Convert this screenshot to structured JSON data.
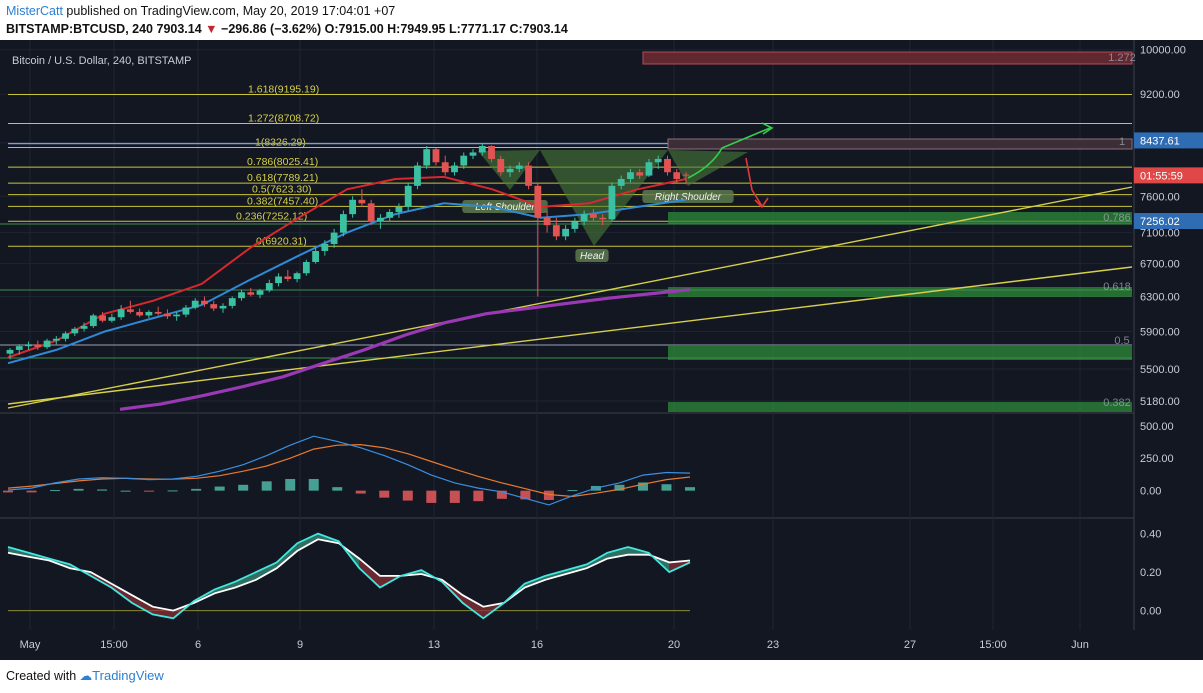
{
  "header": {
    "author": "MisterCatt",
    "published_text": " published on TradingView.com, May 20, 2019 17:04:01 +07",
    "symbol": "BITSTAMP:BTCUSD, 240",
    "last": "7903.14",
    "change": "−296.86 (−3.62%)",
    "ohlc": "O:7915.00 H:7949.95 L:7771.17 C:7903.14",
    "colors": {
      "up": "#26a69a",
      "down": "#c0262d",
      "accent": "#2b7fd4"
    }
  },
  "footer": {
    "created_with": "Created with",
    "brand": "TradingView"
  },
  "chart_data": [
    {
      "type": "candlestick",
      "title": "Bitcoin / U.S. Dollar, 240, BITSTAMP",
      "y_ticks": [
        "10000.00",
        "9200.00",
        "8400.00",
        "7600.00",
        "7100.00",
        "6700.00",
        "6300.00",
        "5900.00",
        "5500.00",
        "5180.00"
      ],
      "ylim": [
        5100,
        10200
      ],
      "x_ticks": [
        "May",
        "15:00",
        "6",
        "9",
        "13",
        "16",
        "20",
        "23",
        "27",
        "15:00",
        "Jun"
      ],
      "price_badges": [
        {
          "label": "8437.61",
          "value": 8437.61,
          "color": "#2e6db4"
        },
        {
          "label": "01:55:59",
          "value": 7903.14,
          "color": "#e04848"
        },
        {
          "label": "7256.02",
          "value": 7256.02,
          "color": "#2e6db4"
        }
      ],
      "fib_levels": [
        {
          "label": "1.618(9195.19)",
          "value": 9195.19
        },
        {
          "label": "1.272(8708.72)",
          "value": 8708.72
        },
        {
          "label": "1(8326.29)",
          "value": 8326.29
        },
        {
          "label": "0.786(8025.41)",
          "value": 8025.41
        },
        {
          "label": "0.618(7789.21)",
          "value": 7789.21
        },
        {
          "label": "0.5(7623.30)",
          "value": 7623.3
        },
        {
          "label": "0.382(7457.40)",
          "value": 7457.4
        },
        {
          "label": "0.236(7252.12)",
          "value": 7252.12
        },
        {
          "label": "0(6920.31)",
          "value": 6920.31
        }
      ],
      "right_fib_labels": [
        "1.272",
        "1",
        "0.786",
        "0.618",
        "0.5",
        "0.382"
      ],
      "annotations": [
        "Left Shoulder",
        "Head",
        "Right Shoulder"
      ],
      "candles": [
        [
          5660,
          5720,
          5600,
          5700
        ],
        [
          5700,
          5760,
          5650,
          5740
        ],
        [
          5740,
          5790,
          5700,
          5760
        ],
        [
          5760,
          5800,
          5700,
          5730
        ],
        [
          5730,
          5820,
          5710,
          5800
        ],
        [
          5800,
          5850,
          5760,
          5820
        ],
        [
          5820,
          5900,
          5790,
          5880
        ],
        [
          5880,
          5950,
          5850,
          5930
        ],
        [
          5930,
          6000,
          5900,
          5960
        ],
        [
          5960,
          6100,
          5940,
          6080
        ],
        [
          6080,
          6120,
          6000,
          6020
        ],
        [
          6020,
          6100,
          6000,
          6060
        ],
        [
          6060,
          6200,
          6030,
          6150
        ],
        [
          6150,
          6250,
          6100,
          6120
        ],
        [
          6120,
          6160,
          6060,
          6080
        ],
        [
          6080,
          6140,
          6050,
          6120
        ],
        [
          6120,
          6180,
          6080,
          6100
        ],
        [
          6100,
          6150,
          6040,
          6070
        ],
        [
          6070,
          6120,
          6020,
          6090
        ],
        [
          6090,
          6200,
          6060,
          6170
        ],
        [
          6170,
          6280,
          6150,
          6250
        ],
        [
          6250,
          6300,
          6180,
          6210
        ],
        [
          6210,
          6250,
          6130,
          6160
        ],
        [
          6160,
          6220,
          6110,
          6190
        ],
        [
          6190,
          6300,
          6160,
          6280
        ],
        [
          6280,
          6380,
          6250,
          6350
        ],
        [
          6350,
          6400,
          6300,
          6320
        ],
        [
          6320,
          6390,
          6280,
          6370
        ],
        [
          6370,
          6500,
          6350,
          6460
        ],
        [
          6460,
          6580,
          6420,
          6540
        ],
        [
          6540,
          6620,
          6480,
          6510
        ],
        [
          6510,
          6600,
          6470,
          6580
        ],
        [
          6580,
          6750,
          6550,
          6720
        ],
        [
          6720,
          6900,
          6700,
          6860
        ],
        [
          6860,
          7000,
          6800,
          6950
        ],
        [
          6950,
          7150,
          6900,
          7100
        ],
        [
          7100,
          7400,
          7050,
          7350
        ],
        [
          7350,
          7600,
          7300,
          7550
        ],
        [
          7550,
          7700,
          7450,
          7500
        ],
        [
          7500,
          7550,
          7200,
          7250
        ],
        [
          7250,
          7350,
          7150,
          7300
        ],
        [
          7300,
          7420,
          7250,
          7380
        ],
        [
          7380,
          7500,
          7300,
          7450
        ],
        [
          7450,
          7800,
          7400,
          7750
        ],
        [
          7750,
          8100,
          7700,
          8050
        ],
        [
          8050,
          8350,
          8000,
          8300
        ],
        [
          8300,
          8320,
          8050,
          8100
        ],
        [
          8100,
          8200,
          7900,
          7950
        ],
        [
          7950,
          8100,
          7900,
          8050
        ],
        [
          8050,
          8250,
          8000,
          8200
        ],
        [
          8200,
          8300,
          8150,
          8250
        ],
        [
          8250,
          8400,
          8200,
          8350
        ],
        [
          8350,
          8360,
          8100,
          8150
        ],
        [
          8150,
          8200,
          7900,
          7950
        ],
        [
          7950,
          8050,
          7880,
          8000
        ],
        [
          8000,
          8100,
          7950,
          8050
        ],
        [
          8050,
          8100,
          7700,
          7750
        ],
        [
          7750,
          7800,
          6300,
          7300
        ],
        [
          7300,
          7400,
          7100,
          7200
        ],
        [
          7200,
          7300,
          7000,
          7050
        ],
        [
          7050,
          7200,
          7000,
          7150
        ],
        [
          7150,
          7300,
          7100,
          7250
        ],
        [
          7250,
          7400,
          7200,
          7350
        ],
        [
          7350,
          7420,
          7250,
          7300
        ],
        [
          7300,
          7350,
          7200,
          7280
        ],
        [
          7280,
          7800,
          7250,
          7750
        ],
        [
          7750,
          7900,
          7700,
          7850
        ],
        [
          7850,
          8000,
          7800,
          7950
        ],
        [
          7950,
          8000,
          7850,
          7900
        ],
        [
          7900,
          8150,
          7880,
          8100
        ],
        [
          8100,
          8200,
          8000,
          8150
        ],
        [
          8150,
          8200,
          7900,
          7950
        ],
        [
          7950,
          8000,
          7800,
          7850
        ],
        [
          7915,
          7950,
          7771,
          7903
        ]
      ],
      "ema_red": [
        5620,
        5800,
        6100,
        6250,
        6450,
        6900,
        7300,
        7700,
        7850,
        7880,
        7700,
        7450,
        7500,
        7700,
        7850
      ],
      "ema_blue": [
        5560,
        5700,
        5900,
        6050,
        6200,
        6500,
        6800,
        7100,
        7350,
        7500,
        7450,
        7300,
        7350,
        7450,
        7550
      ],
      "ema_purple": [
        5100,
        5150,
        5230,
        5320,
        5420,
        5560,
        5700,
        5860,
        6000,
        6100,
        6160,
        6220,
        6280,
        6330,
        6380
      ]
    },
    {
      "type": "histogram",
      "title": "",
      "y_ticks": [
        "500.00",
        "250.00",
        "0.00"
      ],
      "ylim": [
        -180,
        560
      ],
      "macd": [
        5,
        20,
        60,
        90,
        100,
        95,
        85,
        90,
        110,
        150,
        200,
        270,
        350,
        420,
        380,
        330,
        270,
        200,
        120,
        60,
        20,
        -10,
        -60,
        -110,
        -40,
        20,
        60,
        120,
        140,
        135
      ],
      "signal": [
        20,
        35,
        55,
        75,
        90,
        95,
        90,
        88,
        95,
        115,
        150,
        190,
        250,
        320,
        350,
        355,
        330,
        285,
        225,
        165,
        110,
        60,
        15,
        -30,
        -45,
        -20,
        10,
        50,
        85,
        105
      ]
    },
    {
      "type": "line",
      "title": "",
      "y_ticks": [
        "0.40",
        "0.20",
        "0.00"
      ],
      "ylim": [
        -0.08,
        0.46
      ],
      "fast": [
        0.33,
        0.3,
        0.27,
        0.24,
        0.18,
        0.12,
        0.04,
        -0.02,
        -0.04,
        0.05,
        0.11,
        0.15,
        0.2,
        0.25,
        0.35,
        0.4,
        0.36,
        0.22,
        0.12,
        0.18,
        0.21,
        0.15,
        0.04,
        -0.04,
        0.04,
        0.14,
        0.18,
        0.21,
        0.24,
        0.3,
        0.33,
        0.3,
        0.2,
        0.25
      ],
      "slow": [
        0.3,
        0.28,
        0.26,
        0.22,
        0.2,
        0.14,
        0.08,
        0.02,
        0.0,
        0.04,
        0.09,
        0.12,
        0.16,
        0.22,
        0.31,
        0.37,
        0.35,
        0.27,
        0.18,
        0.18,
        0.19,
        0.16,
        0.08,
        0.02,
        0.04,
        0.12,
        0.16,
        0.19,
        0.22,
        0.27,
        0.29,
        0.29,
        0.25,
        0.26
      ]
    }
  ]
}
